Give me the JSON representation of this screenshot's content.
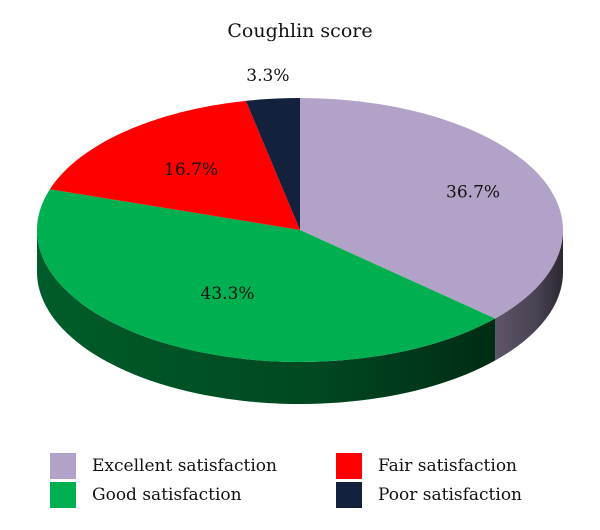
{
  "chart_data": {
    "type": "pie",
    "title": "Coughlin score",
    "categories": [
      "Excellent satisfaction",
      "Good satisfaction",
      "Fair satisfaction",
      "Poor satisfaction"
    ],
    "values": [
      36.7,
      43.3,
      16.7,
      3.3
    ],
    "labels": [
      "36.7%",
      "43.3%",
      "16.7%",
      "3.3%"
    ],
    "colors": [
      "#B3A2C8",
      "#00B050",
      "#FF0000",
      "#14213D"
    ],
    "legend_position": "bottom",
    "style": "3d"
  }
}
